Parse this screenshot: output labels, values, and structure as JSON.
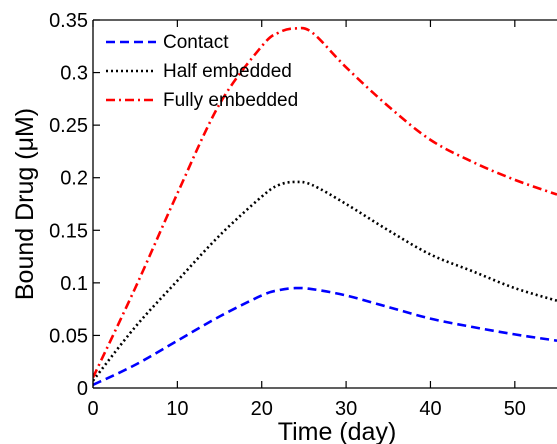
{
  "chart_data": {
    "type": "line",
    "xlabel": "Time (day)",
    "ylabel": "Bound Drug (μM)",
    "xlim": [
      0,
      55
    ],
    "ylim": [
      0,
      0.35
    ],
    "xticks": [
      0,
      10,
      20,
      30,
      40,
      50
    ],
    "xtick_labels": [
      "0",
      "10",
      "20",
      "30",
      "40",
      "50"
    ],
    "yticks": [
      0,
      0.05,
      0.1,
      0.15,
      0.2,
      0.25,
      0.3,
      0.35
    ],
    "ytick_labels": [
      "0",
      "0.05",
      "0.1",
      "0.15",
      "0.2",
      "0.25",
      "0.3",
      "0.35"
    ],
    "grid": false,
    "legend_position": "top-left",
    "x": [
      0,
      5,
      10,
      15,
      20,
      22,
      24,
      26,
      30,
      35,
      40,
      45,
      50,
      55
    ],
    "series": [
      {
        "name": "Contact",
        "color": "#0000ff",
        "dash": "dashed",
        "values": [
          0.003,
          0.022,
          0.045,
          0.068,
          0.088,
          0.093,
          0.095,
          0.094,
          0.088,
          0.077,
          0.066,
          0.058,
          0.051,
          0.045
        ]
      },
      {
        "name": "Half embedded",
        "color": "#000000",
        "dash": "dotted",
        "values": [
          0.007,
          0.058,
          0.102,
          0.145,
          0.182,
          0.193,
          0.196,
          0.193,
          0.175,
          0.15,
          0.127,
          0.111,
          0.095,
          0.083
        ]
      },
      {
        "name": "Fully embedded",
        "color": "#ff0000",
        "dash": "dashdot",
        "values": [
          0.01,
          0.095,
          0.185,
          0.27,
          0.325,
          0.338,
          0.342,
          0.338,
          0.305,
          0.268,
          0.236,
          0.215,
          0.198,
          0.184
        ]
      }
    ]
  }
}
